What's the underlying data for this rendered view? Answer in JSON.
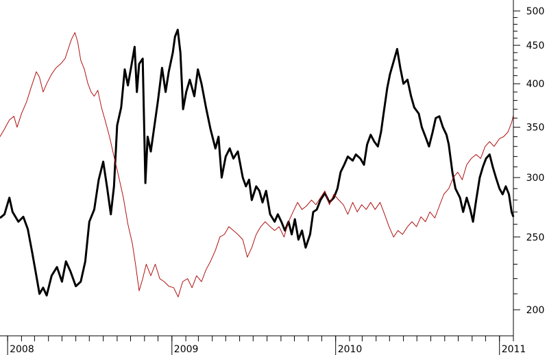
{
  "chart_data": {
    "type": "line",
    "title": "",
    "xlabel": "",
    "ylabel": "",
    "x_range": [
      "2007-12-15",
      "2011-02-01"
    ],
    "y_scale": "log",
    "ylim": [
      180,
      510
    ],
    "y_axis_position": "right",
    "grid": false,
    "legend": "none",
    "x_tick_labels": [
      {
        "label": "2008",
        "date": "2008-01-01"
      },
      {
        "label": "2009",
        "date": "2009-01-01"
      },
      {
        "label": "2010",
        "date": "2010-01-01"
      },
      {
        "label": "2011",
        "date": "2011-01-01"
      }
    ],
    "y_ticks": [
      200,
      250,
      300,
      350,
      400,
      450,
      500
    ],
    "y_minor_ticks": [
      210,
      220,
      230,
      240,
      260,
      270,
      280,
      290,
      310,
      320,
      330,
      340,
      360,
      370,
      380,
      390,
      410,
      420,
      430,
      440,
      460,
      470,
      480,
      490
    ],
    "series": [
      {
        "color": "#000000",
        "line_style": "thick",
        "points": [
          [
            "2007-12-15",
            265
          ],
          [
            "2007-12-25",
            268
          ],
          [
            "2008-01-05",
            282
          ],
          [
            "2008-01-12",
            270
          ],
          [
            "2008-01-25",
            262
          ],
          [
            "2008-02-05",
            266
          ],
          [
            "2008-02-15",
            256
          ],
          [
            "2008-02-25",
            238
          ],
          [
            "2008-03-05",
            222
          ],
          [
            "2008-03-12",
            210
          ],
          [
            "2008-03-20",
            214
          ],
          [
            "2008-03-28",
            209
          ],
          [
            "2008-04-08",
            222
          ],
          [
            "2008-04-20",
            228
          ],
          [
            "2008-05-01",
            218
          ],
          [
            "2008-05-10",
            232
          ],
          [
            "2008-05-20",
            225
          ],
          [
            "2008-06-01",
            215
          ],
          [
            "2008-06-12",
            218
          ],
          [
            "2008-06-22",
            232
          ],
          [
            "2008-07-01",
            262
          ],
          [
            "2008-07-12",
            272
          ],
          [
            "2008-07-22",
            298
          ],
          [
            "2008-08-01",
            315
          ],
          [
            "2008-08-10",
            290
          ],
          [
            "2008-08-18",
            268
          ],
          [
            "2008-08-25",
            292
          ],
          [
            "2008-09-01",
            352
          ],
          [
            "2008-09-10",
            372
          ],
          [
            "2008-09-18",
            418
          ],
          [
            "2008-09-25",
            398
          ],
          [
            "2008-10-05",
            430
          ],
          [
            "2008-10-10",
            448
          ],
          [
            "2008-10-15",
            390
          ],
          [
            "2008-10-20",
            425
          ],
          [
            "2008-10-28",
            432
          ],
          [
            "2008-11-03",
            295
          ],
          [
            "2008-11-08",
            340
          ],
          [
            "2008-11-15",
            325
          ],
          [
            "2008-11-22",
            348
          ],
          [
            "2008-12-01",
            380
          ],
          [
            "2008-12-10",
            420
          ],
          [
            "2008-12-18",
            390
          ],
          [
            "2008-12-25",
            415
          ],
          [
            "2009-01-03",
            440
          ],
          [
            "2009-01-08",
            462
          ],
          [
            "2009-01-14",
            472
          ],
          [
            "2009-01-20",
            440
          ],
          [
            "2009-01-26",
            370
          ],
          [
            "2009-02-02",
            390
          ],
          [
            "2009-02-10",
            405
          ],
          [
            "2009-02-20",
            385
          ],
          [
            "2009-02-28",
            418
          ],
          [
            "2009-03-08",
            400
          ],
          [
            "2009-03-18",
            372
          ],
          [
            "2009-03-28",
            348
          ],
          [
            "2009-04-08",
            328
          ],
          [
            "2009-04-15",
            340
          ],
          [
            "2009-04-22",
            300
          ],
          [
            "2009-05-01",
            320
          ],
          [
            "2009-05-10",
            328
          ],
          [
            "2009-05-18",
            318
          ],
          [
            "2009-05-28",
            325
          ],
          [
            "2009-06-08",
            300
          ],
          [
            "2009-06-15",
            292
          ],
          [
            "2009-06-22",
            298
          ],
          [
            "2009-06-28",
            280
          ],
          [
            "2009-07-08",
            292
          ],
          [
            "2009-07-15",
            288
          ],
          [
            "2009-07-22",
            278
          ],
          [
            "2009-07-30",
            288
          ],
          [
            "2009-08-08",
            268
          ],
          [
            "2009-08-18",
            262
          ],
          [
            "2009-08-25",
            268
          ],
          [
            "2009-09-02",
            262
          ],
          [
            "2009-09-10",
            255
          ],
          [
            "2009-09-18",
            262
          ],
          [
            "2009-09-25",
            252
          ],
          [
            "2009-10-02",
            264
          ],
          [
            "2009-10-10",
            248
          ],
          [
            "2009-10-18",
            255
          ],
          [
            "2009-10-26",
            242
          ],
          [
            "2009-11-05",
            252
          ],
          [
            "2009-11-12",
            270
          ],
          [
            "2009-11-20",
            272
          ],
          [
            "2009-11-28",
            280
          ],
          [
            "2009-12-08",
            286
          ],
          [
            "2009-12-18",
            278
          ],
          [
            "2009-12-28",
            282
          ],
          [
            "2010-01-05",
            290
          ],
          [
            "2010-01-12",
            305
          ],
          [
            "2010-01-20",
            312
          ],
          [
            "2010-01-28",
            320
          ],
          [
            "2010-02-08",
            316
          ],
          [
            "2010-02-15",
            322
          ],
          [
            "2010-02-25",
            318
          ],
          [
            "2010-03-05",
            312
          ],
          [
            "2010-03-12",
            332
          ],
          [
            "2010-03-20",
            342
          ],
          [
            "2010-03-28",
            335
          ],
          [
            "2010-04-05",
            330
          ],
          [
            "2010-04-12",
            345
          ],
          [
            "2010-04-18",
            366
          ],
          [
            "2010-04-26",
            395
          ],
          [
            "2010-05-02",
            412
          ],
          [
            "2010-05-10",
            428
          ],
          [
            "2010-05-18",
            445
          ],
          [
            "2010-05-25",
            420
          ],
          [
            "2010-06-01",
            400
          ],
          [
            "2010-06-10",
            405
          ],
          [
            "2010-06-18",
            385
          ],
          [
            "2010-06-25",
            372
          ],
          [
            "2010-07-05",
            365
          ],
          [
            "2010-07-12",
            350
          ],
          [
            "2010-07-20",
            340
          ],
          [
            "2010-07-28",
            330
          ],
          [
            "2010-08-05",
            345
          ],
          [
            "2010-08-12",
            360
          ],
          [
            "2010-08-20",
            362
          ],
          [
            "2010-08-28",
            350
          ],
          [
            "2010-09-05",
            342
          ],
          [
            "2010-09-10",
            332
          ],
          [
            "2010-09-18",
            305
          ],
          [
            "2010-09-25",
            290
          ],
          [
            "2010-10-05",
            282
          ],
          [
            "2010-10-12",
            270
          ],
          [
            "2010-10-20",
            282
          ],
          [
            "2010-10-28",
            272
          ],
          [
            "2010-11-03",
            262
          ],
          [
            "2010-11-10",
            280
          ],
          [
            "2010-11-18",
            300
          ],
          [
            "2010-11-25",
            310
          ],
          [
            "2010-12-02",
            318
          ],
          [
            "2010-12-10",
            322
          ],
          [
            "2010-12-17",
            310
          ],
          [
            "2010-12-24",
            300
          ],
          [
            "2011-01-01",
            290
          ],
          [
            "2011-01-08",
            285
          ],
          [
            "2011-01-15",
            292
          ],
          [
            "2011-01-22",
            285
          ],
          [
            "2011-01-28",
            270
          ],
          [
            "2011-02-01",
            266
          ]
        ]
      },
      {
        "color": "#b01010",
        "line_style": "thin",
        "points": [
          [
            "2007-12-15",
            340
          ],
          [
            "2007-12-25",
            348
          ],
          [
            "2008-01-05",
            358
          ],
          [
            "2008-01-15",
            362
          ],
          [
            "2008-01-22",
            350
          ],
          [
            "2008-02-01",
            365
          ],
          [
            "2008-02-12",
            378
          ],
          [
            "2008-02-22",
            395
          ],
          [
            "2008-03-05",
            415
          ],
          [
            "2008-03-12",
            408
          ],
          [
            "2008-03-20",
            390
          ],
          [
            "2008-03-28",
            400
          ],
          [
            "2008-04-08",
            412
          ],
          [
            "2008-04-18",
            420
          ],
          [
            "2008-04-28",
            425
          ],
          [
            "2008-05-08",
            432
          ],
          [
            "2008-05-15",
            445
          ],
          [
            "2008-05-22",
            458
          ],
          [
            "2008-05-30",
            468
          ],
          [
            "2008-06-05",
            455
          ],
          [
            "2008-06-12",
            430
          ],
          [
            "2008-06-20",
            418
          ],
          [
            "2008-06-28",
            400
          ],
          [
            "2008-07-05",
            390
          ],
          [
            "2008-07-12",
            385
          ],
          [
            "2008-07-20",
            392
          ],
          [
            "2008-07-28",
            372
          ],
          [
            "2008-08-05",
            358
          ],
          [
            "2008-08-15",
            340
          ],
          [
            "2008-08-25",
            320
          ],
          [
            "2008-09-05",
            300
          ],
          [
            "2008-09-15",
            282
          ],
          [
            "2008-09-25",
            260
          ],
          [
            "2008-10-05",
            245
          ],
          [
            "2008-10-12",
            230
          ],
          [
            "2008-10-20",
            212
          ],
          [
            "2008-10-28",
            220
          ],
          [
            "2008-11-05",
            230
          ],
          [
            "2008-11-15",
            222
          ],
          [
            "2008-11-25",
            230
          ],
          [
            "2008-12-05",
            220
          ],
          [
            "2008-12-15",
            218
          ],
          [
            "2008-12-25",
            215
          ],
          [
            "2009-01-05",
            214
          ],
          [
            "2009-01-15",
            208
          ],
          [
            "2009-01-25",
            218
          ],
          [
            "2009-02-05",
            220
          ],
          [
            "2009-02-15",
            214
          ],
          [
            "2009-02-25",
            222
          ],
          [
            "2009-03-08",
            218
          ],
          [
            "2009-03-18",
            226
          ],
          [
            "2009-03-28",
            232
          ],
          [
            "2009-04-08",
            240
          ],
          [
            "2009-04-18",
            250
          ],
          [
            "2009-04-28",
            252
          ],
          [
            "2009-05-08",
            258
          ],
          [
            "2009-05-18",
            255
          ],
          [
            "2009-05-28",
            252
          ],
          [
            "2009-06-08",
            248
          ],
          [
            "2009-06-18",
            235
          ],
          [
            "2009-06-28",
            242
          ],
          [
            "2009-07-08",
            252
          ],
          [
            "2009-07-18",
            258
          ],
          [
            "2009-07-28",
            262
          ],
          [
            "2009-08-08",
            258
          ],
          [
            "2009-08-18",
            255
          ],
          [
            "2009-08-28",
            258
          ],
          [
            "2009-09-08",
            250
          ],
          [
            "2009-09-18",
            262
          ],
          [
            "2009-09-28",
            270
          ],
          [
            "2009-10-08",
            278
          ],
          [
            "2009-10-18",
            272
          ],
          [
            "2009-10-28",
            275
          ],
          [
            "2009-11-08",
            280
          ],
          [
            "2009-11-18",
            276
          ],
          [
            "2009-11-28",
            282
          ],
          [
            "2009-12-08",
            288
          ],
          [
            "2009-12-18",
            276
          ],
          [
            "2009-12-28",
            285
          ],
          [
            "2010-01-08",
            280
          ],
          [
            "2010-01-18",
            276
          ],
          [
            "2010-01-28",
            268
          ],
          [
            "2010-02-08",
            278
          ],
          [
            "2010-02-18",
            270
          ],
          [
            "2010-02-28",
            276
          ],
          [
            "2010-03-10",
            272
          ],
          [
            "2010-03-20",
            278
          ],
          [
            "2010-03-30",
            272
          ],
          [
            "2010-04-10",
            278
          ],
          [
            "2010-04-20",
            268
          ],
          [
            "2010-04-30",
            258
          ],
          [
            "2010-05-10",
            250
          ],
          [
            "2010-05-20",
            255
          ],
          [
            "2010-05-30",
            252
          ],
          [
            "2010-06-10",
            258
          ],
          [
            "2010-06-20",
            262
          ],
          [
            "2010-06-30",
            258
          ],
          [
            "2010-07-10",
            266
          ],
          [
            "2010-07-20",
            262
          ],
          [
            "2010-07-30",
            270
          ],
          [
            "2010-08-10",
            265
          ],
          [
            "2010-08-20",
            275
          ],
          [
            "2010-08-30",
            285
          ],
          [
            "2010-09-10",
            290
          ],
          [
            "2010-09-20",
            300
          ],
          [
            "2010-09-30",
            305
          ],
          [
            "2010-10-10",
            298
          ],
          [
            "2010-10-20",
            312
          ],
          [
            "2010-10-30",
            318
          ],
          [
            "2010-11-10",
            322
          ],
          [
            "2010-11-20",
            318
          ],
          [
            "2010-11-30",
            330
          ],
          [
            "2010-12-10",
            335
          ],
          [
            "2010-12-20",
            330
          ],
          [
            "2011-01-01",
            338
          ],
          [
            "2011-01-10",
            340
          ],
          [
            "2011-01-20",
            345
          ],
          [
            "2011-01-28",
            355
          ],
          [
            "2011-02-01",
            363
          ]
        ]
      }
    ]
  }
}
